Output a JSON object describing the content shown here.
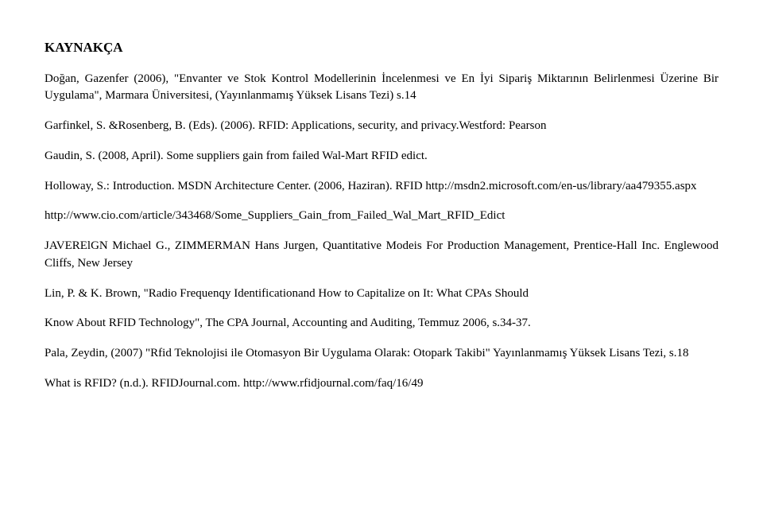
{
  "heading": "KAYNAKÇA",
  "paragraphs": [
    "Doğan, Gazenfer (2006), \"Envanter ve Stok Kontrol Modellerinin İncelenmesi ve En İyi Sipariş Miktarının Belirlenmesi Üzerine Bir Uygulama\", Marmara Üniversitesi, (Yayınlanmamış Yüksek Lisans Tezi) s.14",
    "Garfinkel, S. &Rosenberg, B. (Eds). (2006). RFID: Applications, security, and privacy.Westford: Pearson",
    "Gaudin, S. (2008, April). Some suppliers gain from failed Wal-Mart RFID edict.",
    "Holloway, S.: Introduction. MSDN Architecture Center. (2006, Haziran). RFID http://msdn2.microsoft.com/en-us/library/aa479355.aspx",
    "http://www.cio.com/article/343468/Some_Suppliers_Gain_from_Failed_Wal_Mart_RFID_Edict",
    "JAVERElGN Michael G., ZIMMERMAN Hans Jurgen, Quantitative Modeis For Production Management, Prentice-Hall Inc. Englewood Cliffs, New Jersey",
    "Lin, P. & K. Brown, \"Radio Frequenqy Identificationand How to Capitalize on It: What CPAs Should",
    "Know About RFID Technology\", The CPA Journal, Accounting and Auditing, Temmuz 2006, s.34-37.",
    "Pala, Zeydin, (2007) \"Rfid Teknolojisi ile Otomasyon Bir Uygulama Olarak: Otopark Takibi\" Yayınlanmamış Yüksek Lisans Tezi, s.18",
    "What is RFID? (n.d.). RFIDJournal.com. http://www.rfidjournal.com/faq/16/49"
  ],
  "colors": {
    "background": "#ffffff",
    "text": "#000000"
  },
  "typography": {
    "font_family": "Times New Roman",
    "heading_size_pt": 13,
    "heading_weight": "bold",
    "body_size_pt": 11,
    "line_height": 1.45
  }
}
